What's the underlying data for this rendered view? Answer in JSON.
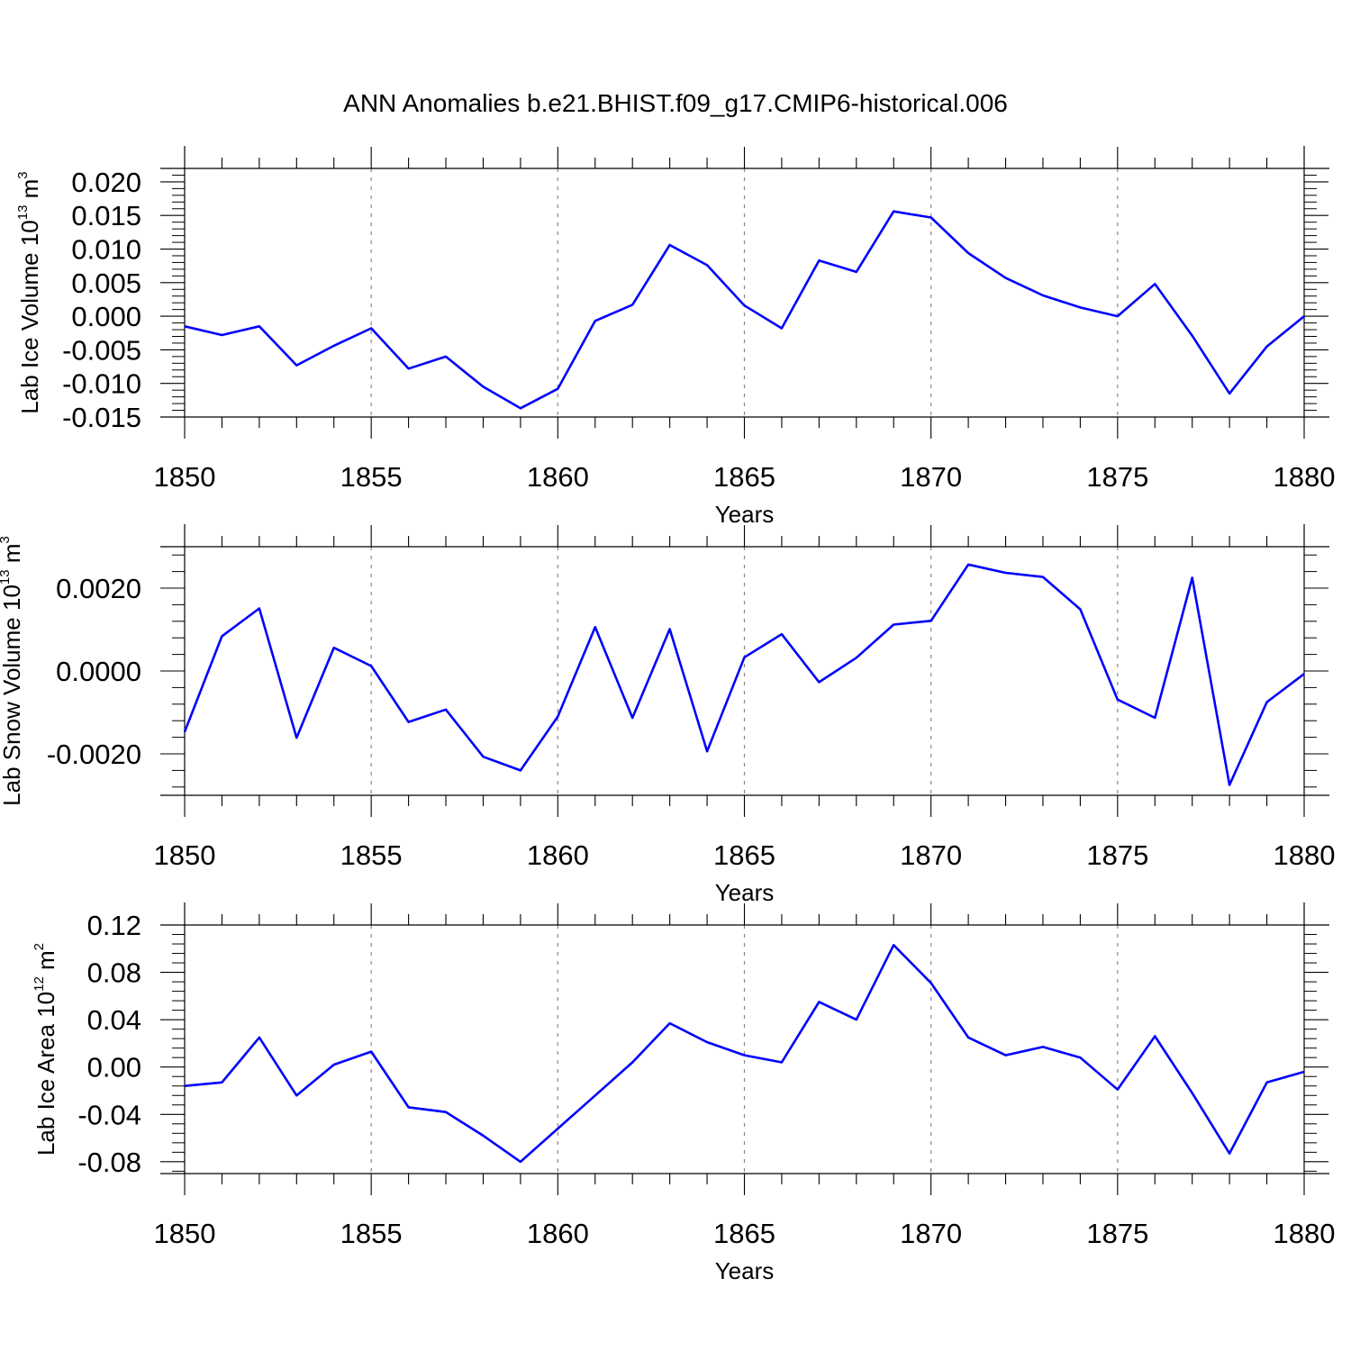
{
  "title": "ANN Anomalies b.e21.BHIST.f09_g17.CMIP6-historical.006",
  "colors": {
    "line": "#0000ff",
    "axis": "#000000",
    "grid": "#888888"
  },
  "chart_data": [
    {
      "type": "line",
      "ylabel": {
        "text": "Lab Ice Volume 10",
        "sup": "13",
        "unit": " m",
        "unit_sup": "3"
      },
      "xlabel": "Years",
      "xlim": [
        1850,
        1880
      ],
      "ylim": [
        -0.015,
        0.022
      ],
      "yticks": [
        -0.015,
        -0.01,
        -0.005,
        0.0,
        0.005,
        0.01,
        0.015,
        0.02
      ],
      "ytick_labels": [
        "-0.015",
        "-0.010",
        "-0.005",
        "0.000",
        "0.005",
        "0.010",
        "0.015",
        "0.020"
      ],
      "xticks": [
        1850,
        1855,
        1860,
        1865,
        1870,
        1875,
        1880
      ],
      "xtick_labels": [
        "1850",
        "1855",
        "1860",
        "1865",
        "1870",
        "1875",
        "1880"
      ],
      "grid": "dashed vertical at major x ticks",
      "x": [
        1850,
        1851,
        1852,
        1853,
        1854,
        1855,
        1856,
        1857,
        1858,
        1859,
        1860,
        1861,
        1862,
        1863,
        1864,
        1865,
        1866,
        1867,
        1868,
        1869,
        1870,
        1871,
        1872,
        1873,
        1874,
        1875,
        1876,
        1877,
        1878,
        1879,
        1880
      ],
      "y": [
        -0.0015,
        -0.0028,
        -0.0015,
        -0.0073,
        -0.0044,
        -0.0018,
        -0.0078,
        -0.006,
        -0.0105,
        -0.0137,
        -0.0108,
        -0.0007,
        0.0017,
        0.0106,
        0.0076,
        0.0016,
        -0.0018,
        0.0083,
        0.0066,
        0.0156,
        0.0147,
        0.0094,
        0.0057,
        0.0031,
        0.0013,
        0.0,
        0.0048,
        -0.0029,
        -0.0115,
        -0.0045,
        0.0
      ]
    },
    {
      "type": "line",
      "ylabel": {
        "text": "Lab Snow Volume 10",
        "sup": "13",
        "unit": " m",
        "unit_sup": "3"
      },
      "xlabel": "Years",
      "xlim": [
        1850,
        1880
      ],
      "ylim": [
        -0.003,
        0.003
      ],
      "yticks": [
        -0.002,
        0.0,
        0.002
      ],
      "ytick_labels": [
        "-0.0020",
        "0.0000",
        "0.0020"
      ],
      "xticks": [
        1850,
        1855,
        1860,
        1865,
        1870,
        1875,
        1880
      ],
      "xtick_labels": [
        "1850",
        "1855",
        "1860",
        "1865",
        "1870",
        "1875",
        "1880"
      ],
      "grid": "dashed vertical at major x ticks",
      "x": [
        1850,
        1851,
        1852,
        1853,
        1854,
        1855,
        1856,
        1857,
        1858,
        1859,
        1860,
        1861,
        1862,
        1863,
        1864,
        1865,
        1866,
        1867,
        1868,
        1869,
        1870,
        1871,
        1872,
        1873,
        1874,
        1875,
        1876,
        1877,
        1878,
        1879,
        1880
      ],
      "y": [
        -0.00147,
        0.00084,
        0.00151,
        -0.00161,
        0.00056,
        0.00012,
        -0.00123,
        -0.00093,
        -0.00207,
        -0.0024,
        -0.0011,
        0.00106,
        -0.00113,
        0.00101,
        -0.00194,
        0.00033,
        0.00089,
        -0.00027,
        0.00032,
        0.00112,
        0.00121,
        0.00257,
        0.00237,
        0.00227,
        0.00149,
        -0.00069,
        -0.00113,
        0.00225,
        -0.00275,
        -0.00075,
        -7e-05
      ]
    },
    {
      "type": "line",
      "ylabel": {
        "text": "Lab Ice Area 10",
        "sup": "12",
        "unit": " m",
        "unit_sup": "2"
      },
      "xlabel": "Years",
      "xlim": [
        1850,
        1880
      ],
      "ylim": [
        -0.09,
        0.12
      ],
      "yticks": [
        -0.08,
        -0.04,
        0.0,
        0.04,
        0.08,
        0.12
      ],
      "ytick_labels": [
        "-0.08",
        "-0.04",
        "0.00",
        "0.04",
        "0.08",
        "0.12"
      ],
      "xticks": [
        1850,
        1855,
        1860,
        1865,
        1870,
        1875,
        1880
      ],
      "xtick_labels": [
        "1850",
        "1855",
        "1860",
        "1865",
        "1870",
        "1875",
        "1880"
      ],
      "grid": "dashed vertical at major x ticks",
      "x": [
        1850,
        1851,
        1852,
        1853,
        1854,
        1855,
        1856,
        1857,
        1858,
        1859,
        1860,
        1861,
        1862,
        1863,
        1864,
        1865,
        1866,
        1867,
        1868,
        1869,
        1870,
        1871,
        1872,
        1873,
        1874,
        1875,
        1876,
        1877,
        1878,
        1879,
        1880
      ],
      "y": [
        -0.016,
        -0.013,
        0.025,
        -0.024,
        0.002,
        0.013,
        -0.034,
        -0.038,
        -0.058,
        -0.08,
        -0.052,
        -0.024,
        0.004,
        0.037,
        0.021,
        0.01,
        0.004,
        0.055,
        0.04,
        0.103,
        0.071,
        0.025,
        0.01,
        0.017,
        0.008,
        -0.019,
        0.026,
        -0.022,
        -0.073,
        -0.013,
        -0.004
      ]
    }
  ]
}
